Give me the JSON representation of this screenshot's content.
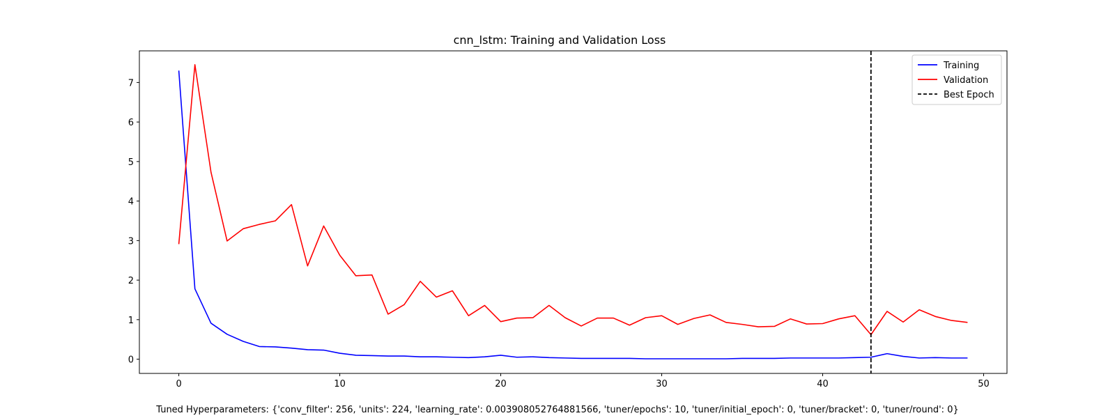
{
  "chart_data": {
    "type": "line",
    "title": "cnn_lstm: Training and Validation Loss",
    "xlabel": "",
    "ylabel": "",
    "xlim": [
      -2.45,
      51.45
    ],
    "ylim": [
      -0.36,
      7.8
    ],
    "xticks": [
      0,
      10,
      20,
      30,
      40,
      50
    ],
    "yticks": [
      0,
      1,
      2,
      3,
      4,
      5,
      6,
      7
    ],
    "grid": false,
    "legend_position": "top-right",
    "x": [
      0,
      1,
      2,
      3,
      4,
      5,
      6,
      7,
      8,
      9,
      10,
      11,
      12,
      13,
      14,
      15,
      16,
      17,
      18,
      19,
      20,
      21,
      22,
      23,
      24,
      25,
      26,
      27,
      28,
      29,
      30,
      31,
      32,
      33,
      34,
      35,
      36,
      37,
      38,
      39,
      40,
      41,
      42,
      43,
      44,
      45,
      46,
      47,
      48,
      49
    ],
    "series": [
      {
        "name": "Training",
        "color": "#0000ff",
        "values": [
          7.3,
          1.78,
          0.91,
          0.63,
          0.45,
          0.32,
          0.31,
          0.28,
          0.24,
          0.23,
          0.15,
          0.1,
          0.09,
          0.08,
          0.08,
          0.06,
          0.06,
          0.05,
          0.04,
          0.06,
          0.1,
          0.05,
          0.06,
          0.04,
          0.03,
          0.02,
          0.02,
          0.02,
          0.02,
          0.01,
          0.01,
          0.01,
          0.01,
          0.01,
          0.01,
          0.02,
          0.02,
          0.02,
          0.03,
          0.03,
          0.03,
          0.03,
          0.04,
          0.05,
          0.14,
          0.07,
          0.03,
          0.04,
          0.03,
          0.03
        ]
      },
      {
        "name": "Validation",
        "color": "#ff0000",
        "values": [
          2.91,
          7.45,
          4.73,
          2.99,
          3.3,
          3.41,
          3.5,
          3.91,
          2.36,
          3.37,
          2.63,
          2.11,
          2.13,
          1.14,
          1.38,
          1.97,
          1.57,
          1.73,
          1.1,
          1.36,
          0.95,
          1.04,
          1.05,
          1.36,
          1.05,
          0.84,
          1.04,
          1.04,
          0.86,
          1.05,
          1.1,
          0.88,
          1.03,
          1.12,
          0.93,
          0.88,
          0.82,
          0.83,
          1.02,
          0.89,
          0.9,
          1.02,
          1.1,
          0.62,
          1.21,
          0.94,
          1.25,
          1.08,
          0.98,
          0.93
        ]
      }
    ],
    "vlines": [
      {
        "name": "Best Epoch",
        "x": 43,
        "color": "#000000",
        "style": "dashed"
      }
    ]
  },
  "footnote": "Tuned Hyperparameters: {'conv_filter': 256, 'units': 224, 'learning_rate': 0.003908052764881566, 'tuner/epochs': 10, 'tuner/initial_epoch': 0, 'tuner/bracket': 0, 'tuner/round': 0}"
}
